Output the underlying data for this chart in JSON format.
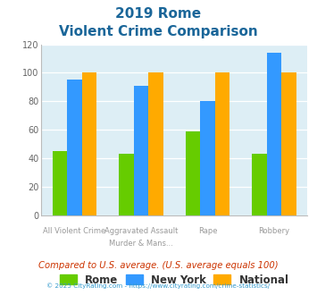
{
  "title_line1": "2019 Rome",
  "title_line2": "Violent Crime Comparison",
  "top_labels": [
    "",
    "Aggravated Assault",
    "",
    ""
  ],
  "bottom_labels": [
    "All Violent Crime",
    "Murder & Mans...",
    "Rape",
    "Robbery"
  ],
  "rome": [
    45,
    43,
    59,
    43
  ],
  "new_york": [
    95,
    91,
    80,
    114
  ],
  "national": [
    100,
    100,
    100,
    100
  ],
  "rome_color": "#66cc00",
  "new_york_color": "#3399ff",
  "national_color": "#ffaa00",
  "bg_color": "#ddeef5",
  "ylim": [
    0,
    120
  ],
  "yticks": [
    0,
    20,
    40,
    60,
    80,
    100,
    120
  ],
  "note": "Compared to U.S. average. (U.S. average equals 100)",
  "footer": "© 2025 CityRating.com - https://www.cityrating.com/crime-statistics/",
  "title_color": "#1a6699",
  "note_color": "#cc3300",
  "footer_color": "#3399cc",
  "label_color": "#999999"
}
